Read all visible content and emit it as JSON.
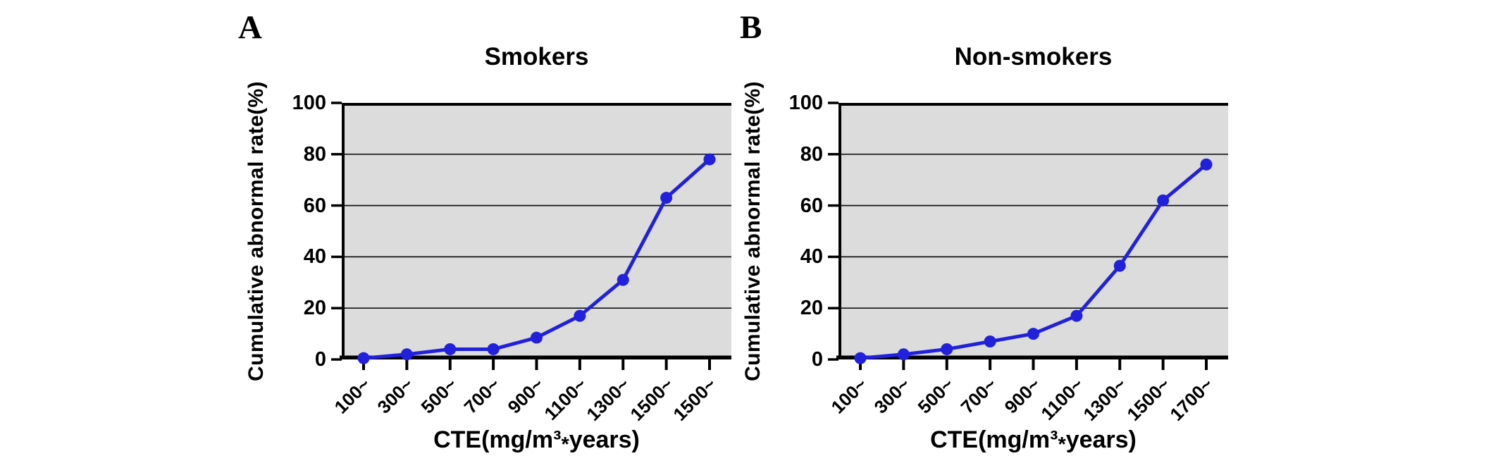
{
  "figure": {
    "background": "#ffffff",
    "text_color": "#000000"
  },
  "chart_data": [
    {
      "type": "line",
      "panel": "A",
      "title": "Smokers",
      "xlabel": "CTE(mg/m³*years)",
      "ylabel": "Cumulative abnormal rate(%)",
      "categories": [
        "100~",
        "300~",
        "500~",
        "700~",
        "900~",
        "1100~",
        "1300~",
        "1500~",
        "1500~"
      ],
      "values": [
        0.5,
        2,
        4,
        4,
        8.5,
        17,
        31,
        63,
        78
      ],
      "ylim": [
        0,
        100
      ],
      "y_ticks": [
        0,
        20,
        40,
        60,
        80,
        100
      ],
      "grid": true,
      "legend": "none",
      "line_color": "#2121dd",
      "marker": "circle",
      "plot_bg": "#dcdcdc"
    },
    {
      "type": "line",
      "panel": "B",
      "title": "Non-smokers",
      "xlabel": "CTE(mg/m³*years)",
      "ylabel": "Cumulative abnormal rate(%)",
      "categories": [
        "100~",
        "300~",
        "500~",
        "700~",
        "900~",
        "1100~",
        "1300~",
        "1500~",
        "1700~"
      ],
      "values": [
        0.5,
        2,
        4,
        7,
        10,
        17,
        36.5,
        62,
        76
      ],
      "ylim": [
        0,
        100
      ],
      "y_ticks": [
        0,
        20,
        40,
        60,
        80,
        100
      ],
      "grid": true,
      "legend": "none",
      "line_color": "#2121dd",
      "marker": "circle",
      "plot_bg": "#dcdcdc"
    }
  ]
}
